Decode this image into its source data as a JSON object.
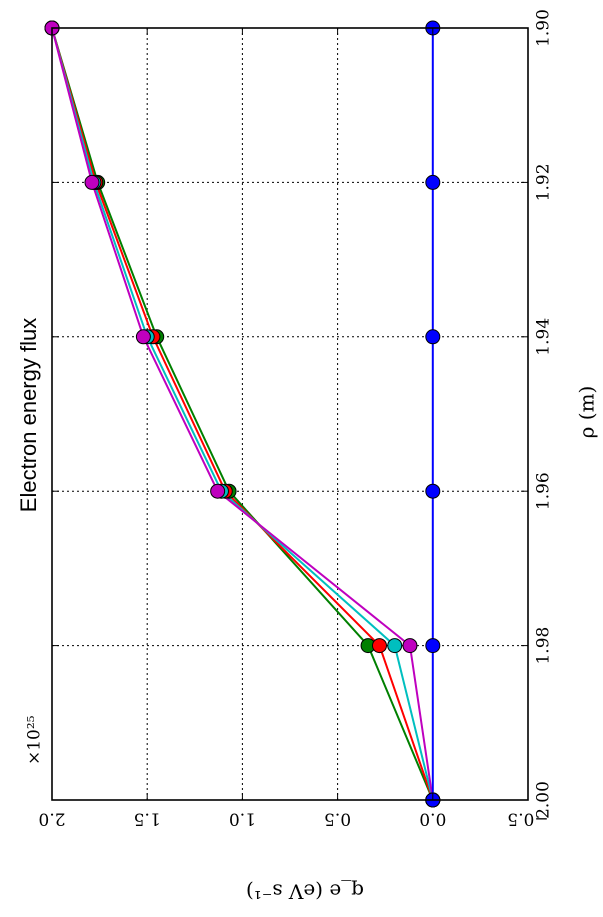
{
  "chart_data": {
    "type": "line",
    "title": "Electron energy flux",
    "xlabel": "ρ (m)",
    "ylabel": "q_e (eV s⁻¹)",
    "offset_label": "×10²⁵",
    "xlim": [
      1.9,
      2.0
    ],
    "ylim": [
      -0.5,
      2.0
    ],
    "x_ticks": [
      "1.90",
      "1.92",
      "1.94",
      "1.96",
      "1.98",
      "2.00"
    ],
    "y_ticks": [
      "2.0",
      "1.5",
      "1.0",
      "0.5",
      "0.0",
      "−0.5"
    ],
    "grid": true,
    "x": [
      1.9,
      1.92,
      1.94,
      1.96,
      1.98,
      2.0
    ],
    "series": [
      {
        "color": "#0000ff",
        "values": [
          0.0,
          0.0,
          0.0,
          0.0,
          0.0,
          0.0
        ]
      },
      {
        "color": "#008000",
        "values": [
          2.0,
          1.76,
          1.45,
          1.07,
          0.34,
          0.0
        ]
      },
      {
        "color": "#ff0000",
        "values": [
          2.0,
          1.77,
          1.47,
          1.09,
          0.28,
          0.0
        ]
      },
      {
        "color": "#00bfbf",
        "values": [
          2.0,
          1.78,
          1.5,
          1.11,
          0.2,
          0.0
        ]
      },
      {
        "color": "#bf00bf",
        "values": [
          2.0,
          1.79,
          1.52,
          1.13,
          0.12,
          0.0
        ]
      }
    ]
  }
}
